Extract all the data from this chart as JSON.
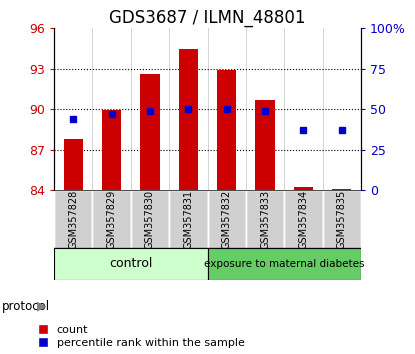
{
  "title": "GDS3687 / ILMN_48801",
  "samples": [
    "GSM357828",
    "GSM357829",
    "GSM357830",
    "GSM357831",
    "GSM357832",
    "GSM357833",
    "GSM357834",
    "GSM357835"
  ],
  "count_values": [
    87.8,
    89.95,
    92.6,
    94.45,
    92.9,
    90.7,
    84.2,
    84.1
  ],
  "percentile_values": [
    44,
    47,
    49,
    50,
    50,
    49,
    37,
    37
  ],
  "left_ylim": [
    84,
    96
  ],
  "right_ylim": [
    0,
    100
  ],
  "left_yticks": [
    84,
    87,
    90,
    93,
    96
  ],
  "right_yticks": [
    0,
    25,
    50,
    75,
    100
  ],
  "right_yticklabels": [
    "0",
    "25",
    "50",
    "75",
    "100%"
  ],
  "bar_color": "#cc0000",
  "dot_color": "#0000cc",
  "bar_bottom": 84,
  "control_label": "control",
  "treatment_label": "exposure to maternal diabetes",
  "control_count": 4,
  "treatment_count": 4,
  "control_bg": "#ccffcc",
  "treatment_bg": "#66cc66",
  "protocol_label": "protocol",
  "legend_count_label": "count",
  "legend_percentile_label": "percentile rank within the sample",
  "bar_color_red": "#cc0000",
  "dot_color_blue": "#0000cc",
  "title_fontsize": 12,
  "tick_fontsize": 9,
  "sample_fontsize": 7,
  "sample_bg_color": "#d0d0d0",
  "grid_yticks": [
    87,
    90,
    93
  ]
}
